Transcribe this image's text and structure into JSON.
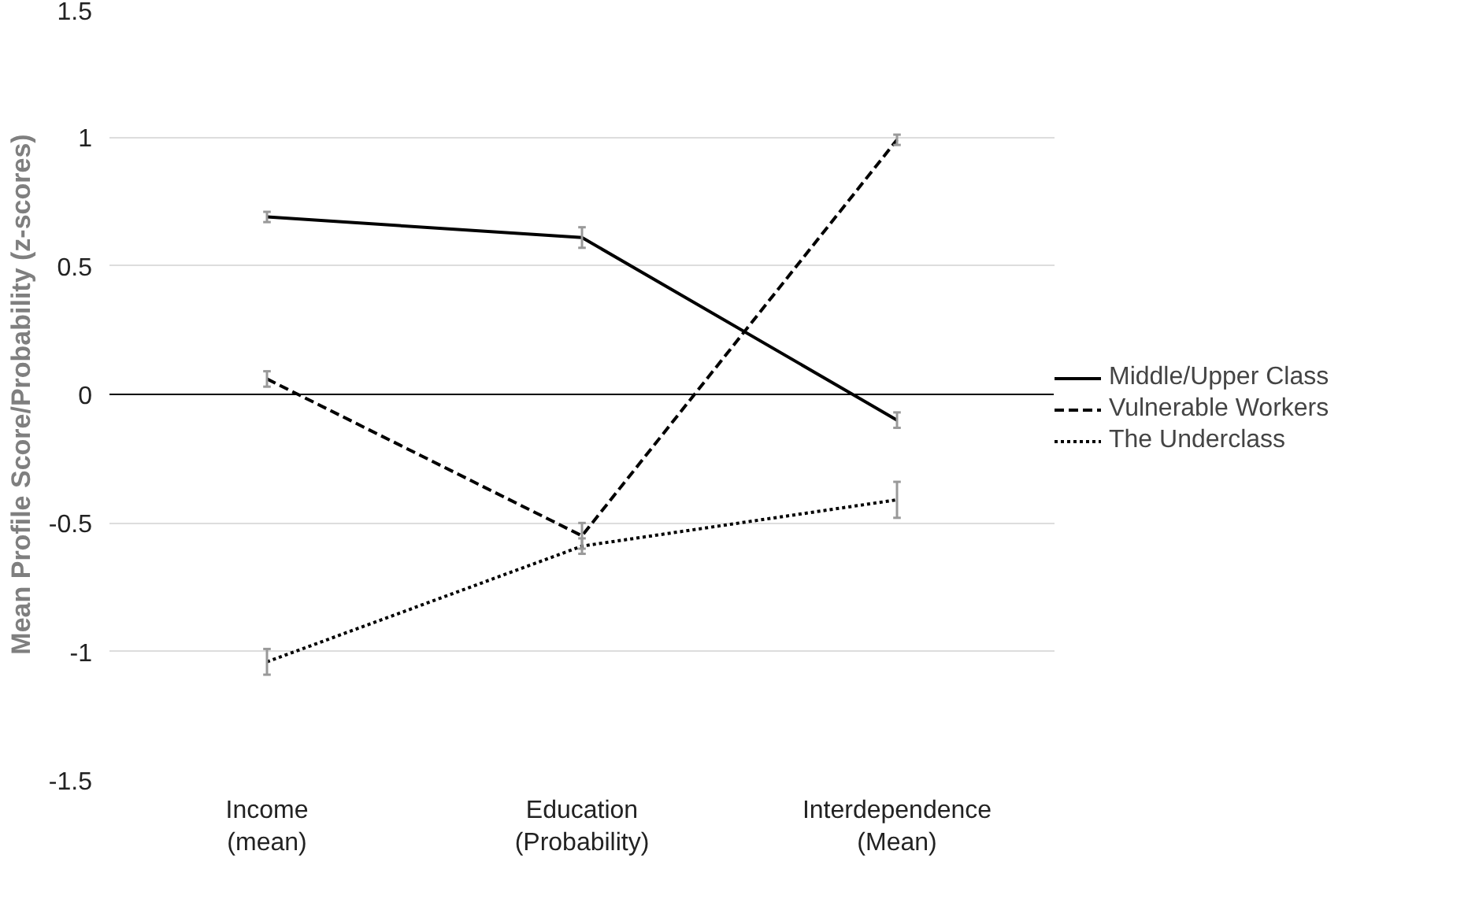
{
  "chart_data": {
    "type": "line",
    "ylabel": "Mean Profile Score/Probability (z-scores)",
    "categories": [
      "Income\n(mean)",
      "Education\n(Probability)",
      "Interdependence\n(Mean)"
    ],
    "series": [
      {
        "name": "Middle/Upper Class",
        "color": "#000000",
        "line_style": "solid",
        "values": [
          0.69,
          0.61,
          -0.1
        ],
        "errors": [
          0.02,
          0.04,
          0.03
        ]
      },
      {
        "name": "Vulnerable Workers",
        "color": "#000000",
        "line_style": "dashed",
        "values": [
          0.06,
          -0.55,
          0.99
        ],
        "errors": [
          0.03,
          0.05,
          0.02
        ]
      },
      {
        "name": "The Underclass",
        "color": "#000000",
        "line_style": "dotted",
        "values": [
          -1.04,
          -0.59,
          -0.41
        ],
        "errors": [
          0.05,
          0.03,
          0.07
        ]
      }
    ],
    "ylim": [
      -1.5,
      1.5
    ],
    "yticks": [
      -1.5,
      -1,
      -0.5,
      0,
      0.5,
      1,
      1.5
    ],
    "grid": "y",
    "legend": "right",
    "marker": "none",
    "ref_lines": [
      {
        "axis": "y",
        "value": 0,
        "color": "#000000"
      }
    ]
  }
}
